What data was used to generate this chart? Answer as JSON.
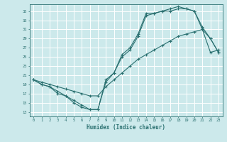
{
  "xlabel": "Humidex (Indice chaleur)",
  "bg_color": "#cce9eb",
  "grid_color": "#ffffff",
  "line_color": "#2a7070",
  "xlim": [
    -0.5,
    23.5
  ],
  "ylim": [
    12,
    36.5
  ],
  "yticks": [
    13,
    15,
    17,
    19,
    21,
    23,
    25,
    27,
    29,
    31,
    33,
    35
  ],
  "xticks": [
    0,
    1,
    2,
    3,
    4,
    5,
    6,
    7,
    8,
    9,
    10,
    11,
    12,
    13,
    14,
    15,
    16,
    17,
    18,
    19,
    20,
    21,
    22,
    23
  ],
  "line1_x": [
    0,
    1,
    2,
    3,
    4,
    5,
    6,
    7,
    8,
    9,
    10,
    11,
    12,
    13,
    14,
    15,
    16,
    17,
    18,
    19,
    20,
    21,
    22,
    23
  ],
  "line1_y": [
    20.0,
    19.0,
    18.5,
    17.0,
    16.5,
    15.0,
    14.0,
    13.5,
    13.5,
    19.5,
    21.5,
    25.5,
    27.0,
    30.0,
    34.5,
    34.5,
    35.0,
    35.0,
    35.5,
    35.5,
    35.0,
    31.5,
    29.0,
    26.0
  ],
  "line2_x": [
    0,
    1,
    2,
    3,
    4,
    5,
    6,
    7,
    8,
    9,
    10,
    11,
    12,
    13,
    14,
    15,
    16,
    17,
    18,
    19,
    20,
    21,
    22,
    23
  ],
  "line2_y": [
    20.0,
    19.0,
    18.5,
    17.5,
    16.5,
    15.5,
    14.5,
    13.5,
    13.5,
    20.0,
    21.5,
    25.0,
    26.5,
    29.5,
    34.0,
    34.5,
    35.0,
    35.5,
    36.0,
    35.5,
    35.0,
    31.0,
    29.0,
    26.0
  ],
  "line3_x": [
    0,
    1,
    2,
    3,
    4,
    5,
    6,
    7,
    8,
    9,
    10,
    11,
    12,
    13,
    14,
    15,
    16,
    17,
    18,
    19,
    20,
    21,
    22,
    23
  ],
  "line3_y": [
    20.0,
    19.5,
    19.0,
    18.5,
    18.0,
    17.5,
    17.0,
    16.5,
    16.5,
    18.5,
    20.0,
    21.5,
    23.0,
    24.5,
    25.5,
    26.5,
    27.5,
    28.5,
    29.5,
    30.0,
    30.5,
    31.0,
    26.0,
    26.5
  ]
}
